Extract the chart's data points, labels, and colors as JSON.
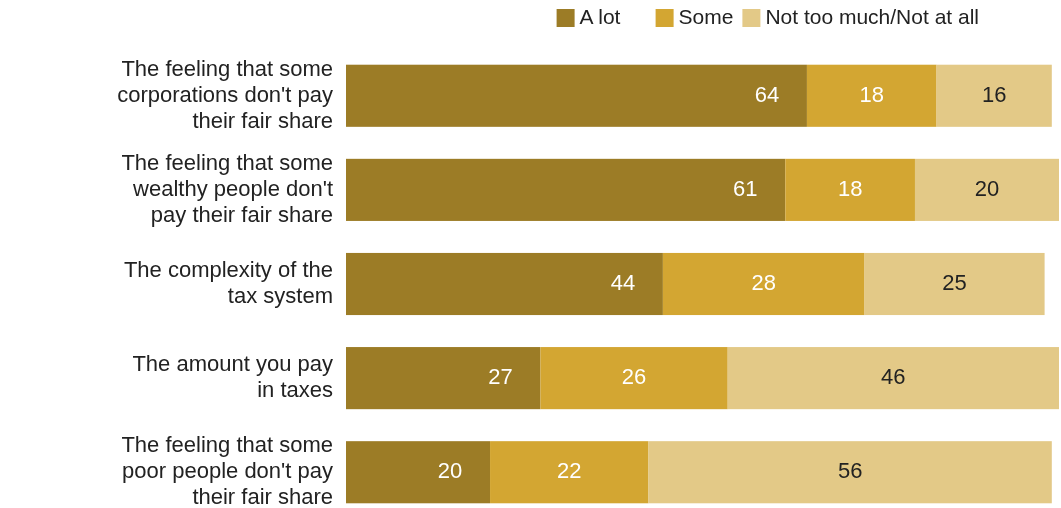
{
  "chart_data": {
    "type": "bar",
    "orientation": "horizontal",
    "stacked": true,
    "data_labels": true,
    "legend": "top right",
    "categories": [
      "The feeling that some corporations don't pay their fair share",
      "The feeling that some wealthy people don't pay their fair share",
      "The complexity of the tax system",
      "The amount you pay in taxes",
      "The feeling that some poor people don't pay their fair share"
    ],
    "series": [
      {
        "name": "A lot",
        "color": "#9c7c26",
        "values": [
          64,
          61,
          44,
          27,
          20
        ]
      },
      {
        "name": "Some",
        "color": "#d3a632",
        "values": [
          18,
          18,
          28,
          26,
          22
        ]
      },
      {
        "name": "Not too much/Not at all",
        "color": "#e3c987",
        "values": [
          16,
          20,
          25,
          46,
          56
        ]
      }
    ]
  }
}
